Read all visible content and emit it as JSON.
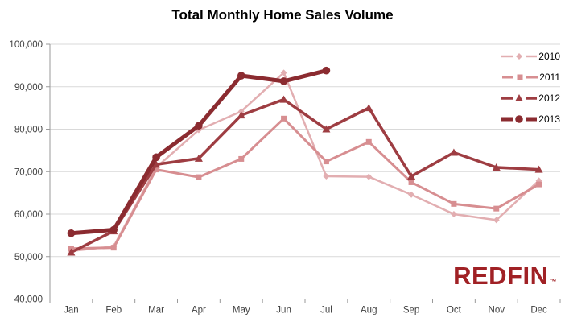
{
  "title": "Total Monthly Home Sales Volume",
  "logo": {
    "text": "REDFIN",
    "trademark": "™",
    "color": "#a02125"
  },
  "colors": {
    "gridline": "#d9d9d9",
    "axis": "#9a9a9a",
    "tick_text": "#3f3f3f",
    "title_text": "#000000"
  },
  "chart_data": {
    "type": "line",
    "title": "Total Monthly Home Sales Volume",
    "categories": [
      "Jan",
      "Feb",
      "Mar",
      "Apr",
      "May",
      "Jun",
      "Jul",
      "Aug",
      "Sep",
      "Oct",
      "Nov",
      "Dec"
    ],
    "series": [
      {
        "name": "2010",
        "color": "#e2aeb1",
        "marker": "diamond",
        "line_width": 2.5,
        "values": [
          51300,
          52400,
          71000,
          79800,
          84200,
          93300,
          68900,
          68800,
          64600,
          60000,
          58600,
          67900
        ]
      },
      {
        "name": "2011",
        "color": "#d78e91",
        "marker": "square",
        "line_width": 3,
        "values": [
          51900,
          52100,
          70500,
          68700,
          73000,
          82500,
          72400,
          77000,
          67500,
          62400,
          61300,
          67000
        ]
      },
      {
        "name": "2012",
        "color": "#9e3d42",
        "marker": "triangle",
        "line_width": 3.5,
        "values": [
          51000,
          56000,
          71700,
          73100,
          83300,
          87000,
          80000,
          85000,
          68900,
          74500,
          71000,
          70500
        ]
      },
      {
        "name": "2013",
        "color": "#8b2b30",
        "marker": "circle",
        "line_width": 5,
        "values": [
          55500,
          56300,
          73400,
          80800,
          92600,
          91300,
          93800,
          null,
          null,
          null,
          null,
          null
        ]
      }
    ],
    "ylim": [
      40000,
      100000
    ],
    "ytick_step": 10000,
    "ytick_labels": [
      "40,000",
      "50,000",
      "60,000",
      "70,000",
      "80,000",
      "90,000",
      "100,000"
    ],
    "grid": "horizontal",
    "legend_position": "top-right"
  }
}
